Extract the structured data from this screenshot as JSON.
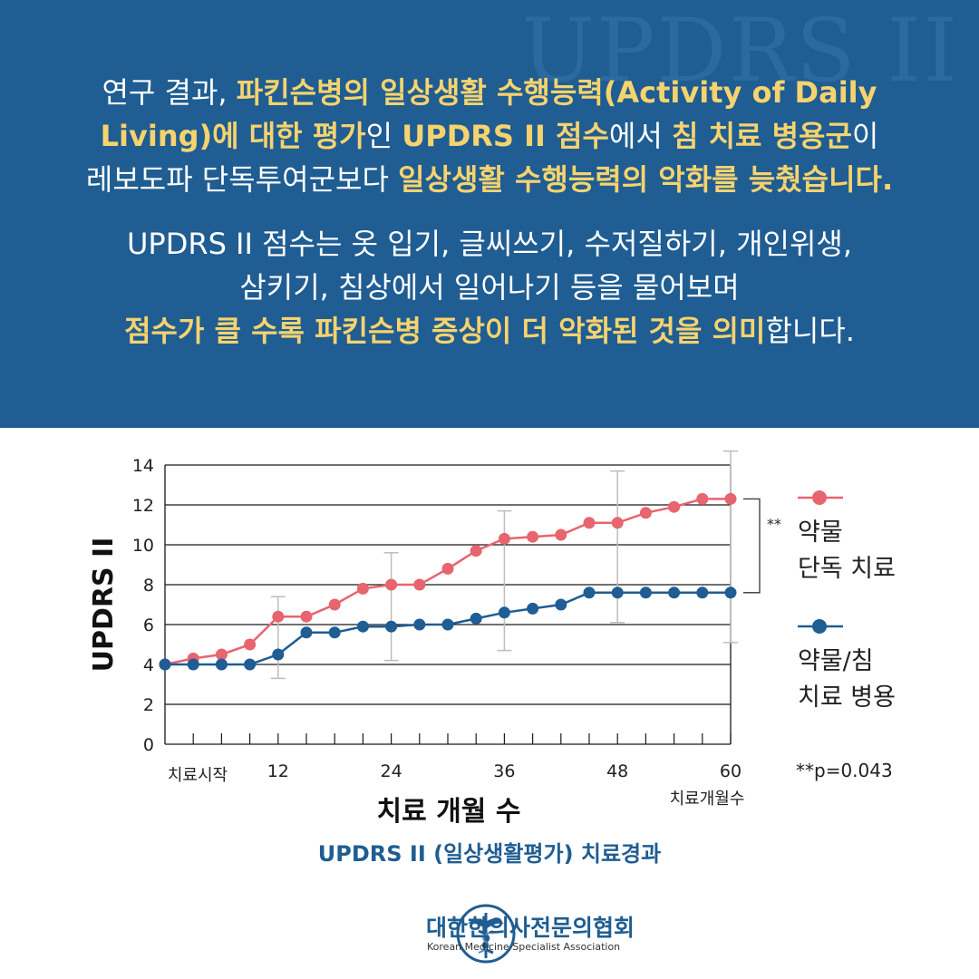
{
  "watermark": "UPDRS II",
  "intro": {
    "line1": [
      {
        "t": "연구 결과, ",
        "hl": false
      },
      {
        "t": "파킨슨병의 일상생활 수행능력(Activity of Daily",
        "hl": true
      }
    ],
    "line2": [
      {
        "t": "Living)에 대한 평가",
        "hl": true
      },
      {
        "t": "인 ",
        "hl": false
      },
      {
        "t": "UPDRS II 점수",
        "hl": true
      },
      {
        "t": "에서 ",
        "hl": false
      },
      {
        "t": "침 치료 병용군",
        "hl": true
      },
      {
        "t": "이",
        "hl": false
      }
    ],
    "line3": [
      {
        "t": "레보도파 단독투여군보다 ",
        "hl": false
      },
      {
        "t": "일상생활 수행능력의 악화를 늦췄습니다.",
        "hl": true
      }
    ]
  },
  "explain": {
    "line1": "UPDRS II 점수는 옷 입기, 글씨쓰기, 수저질하기, 개인위생,",
    "line2": "삼키기, 침상에서 일어나기 등을 물어보며",
    "line3": [
      {
        "t": "점수가 클 수록 파킨슨병 증상이 더 악화된 것을 의미",
        "hl": true
      },
      {
        "t": "합니다.",
        "hl": false
      }
    ]
  },
  "chart_data": {
    "type": "line",
    "ylabel": "UPDRS II",
    "xlabel": "치료 개월 수",
    "x_start_label": "치료시작",
    "x_end_label": "치료개월수",
    "xlim": [
      0,
      60
    ],
    "ylim": [
      0,
      14
    ],
    "x_ticks": [
      12,
      24,
      36,
      48,
      60
    ],
    "y_ticks": [
      0,
      2,
      4,
      6,
      8,
      10,
      12,
      14
    ],
    "x": [
      0,
      3,
      6,
      9,
      12,
      15,
      18,
      21,
      24,
      27,
      30,
      33,
      36,
      39,
      42,
      45,
      48,
      51,
      54,
      57,
      60
    ],
    "series": [
      {
        "name": "약물 단독 치료",
        "legend_lines": [
          "약물",
          "단독 치료"
        ],
        "color": "#e8646e",
        "values": [
          4.0,
          4.3,
          4.5,
          5.0,
          6.4,
          6.4,
          7.0,
          7.8,
          8.0,
          8.0,
          8.8,
          9.7,
          10.3,
          10.4,
          10.5,
          11.1,
          11.1,
          11.6,
          11.9,
          12.3,
          12.3
        ],
        "error_bars": [
          {
            "x": 12,
            "low": 3.3,
            "high": 7.4
          },
          {
            "x": 24,
            "low": 4.2,
            "high": 9.6
          },
          {
            "x": 36,
            "low": 4.7,
            "high": 11.7
          },
          {
            "x": 48,
            "low": 6.1,
            "high": 13.7
          },
          {
            "x": 60,
            "low": 5.1,
            "high": 14.7
          }
        ]
      },
      {
        "name": "약물/침 치료 병용",
        "legend_lines": [
          "약물/침",
          "치료 병용"
        ],
        "color": "#1f5d92",
        "values": [
          4.0,
          4.0,
          4.0,
          4.0,
          4.5,
          5.6,
          5.6,
          5.9,
          5.9,
          6.0,
          6.0,
          6.3,
          6.6,
          6.8,
          7.0,
          7.6,
          7.6,
          7.6,
          7.6,
          7.6,
          7.6
        ],
        "error_bars": []
      }
    ],
    "significance_marker": "**",
    "p_value_note": "**p=0.043",
    "grid": true,
    "legend": "right"
  },
  "caption": "UPDRS II (일상생활평가) 치료경과",
  "logo": {
    "name_ko": "대한한의사전문의협회",
    "name_en": "Korean Medicine Specialist Association",
    "icon": "caduceus-icon"
  }
}
